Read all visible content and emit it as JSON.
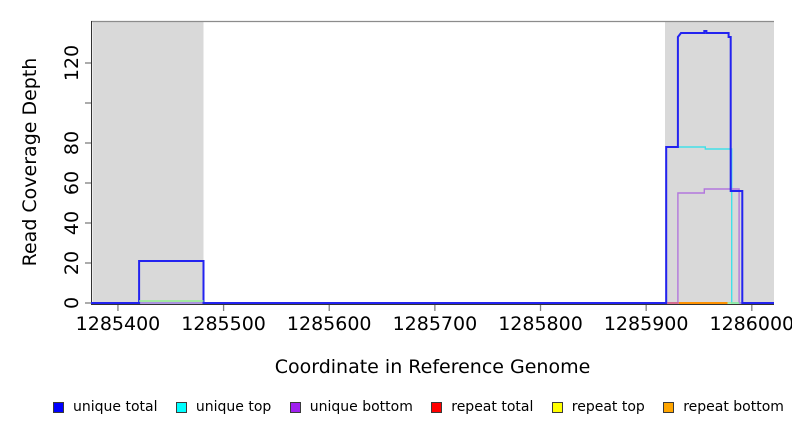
{
  "chart_data": {
    "type": "line",
    "title": "",
    "xlabel": "Coordinate in Reference Genome",
    "ylabel": "Read Coverage Depth",
    "xlim": [
      1285374.5,
      1286021
    ],
    "ylim": [
      0,
      141
    ],
    "x_ticks": [
      1285400,
      1285500,
      1285600,
      1285700,
      1285800,
      1285900,
      1286000
    ],
    "x_tick_labels": [
      "1285400",
      "1285500",
      "1285600",
      "1285700",
      "1285800",
      "1285900",
      "1286000"
    ],
    "y_ticks": [
      0,
      20,
      40,
      60,
      80,
      100,
      120
    ],
    "y_tick_labels": [
      "0",
      "20",
      "40",
      "60",
      "80",
      "",
      "120"
    ],
    "grid": "off",
    "legend_position": "bottom",
    "shaded_regions": [
      {
        "from": 1285376,
        "to": 1285481
      },
      {
        "from": 1285918,
        "to": 1286021
      }
    ],
    "colors": {
      "shading": "#d9d9d9",
      "top_rule": "#8c8c8c",
      "axis": "#333333",
      "tick": "#808080"
    },
    "series": [
      {
        "name": "unique top",
        "slug": "unique-top",
        "color": "#42dfe8",
        "width": 1.4,
        "steps": [
          [
            1285374.5,
            0
          ],
          [
            1285919,
            0
          ],
          [
            1285919,
            78
          ],
          [
            1285956,
            78
          ],
          [
            1285956,
            77
          ],
          [
            1285981,
            77
          ],
          [
            1285981,
            0
          ],
          [
            1286021,
            0
          ]
        ]
      },
      {
        "name": "unique bottom",
        "slug": "unique-bottom",
        "color": "#b277dd",
        "width": 1.4,
        "steps": [
          [
            1285374.5,
            0
          ],
          [
            1285930,
            0
          ],
          [
            1285930,
            55
          ],
          [
            1285955,
            55
          ],
          [
            1285955,
            57
          ],
          [
            1285988,
            57
          ],
          [
            1285988,
            0
          ],
          [
            1286021,
            0
          ]
        ]
      },
      {
        "name": "unique total",
        "slug": "unique-total",
        "color": "#2323f0",
        "width": 2,
        "steps": [
          [
            1285374.5,
            0
          ],
          [
            1285420,
            0
          ],
          [
            1285420,
            21
          ],
          [
            1285481,
            21
          ],
          [
            1285481,
            0
          ],
          [
            1285919,
            0
          ],
          [
            1285919,
            78
          ],
          [
            1285930,
            78
          ],
          [
            1285930,
            133
          ],
          [
            1285933,
            135
          ],
          [
            1285955,
            135
          ],
          [
            1285955,
            136
          ],
          [
            1285957,
            136
          ],
          [
            1285957,
            135
          ],
          [
            1285978,
            135
          ],
          [
            1285978,
            133
          ],
          [
            1285980,
            133
          ],
          [
            1285980,
            56
          ],
          [
            1285991,
            56
          ],
          [
            1285991,
            0
          ],
          [
            1286021,
            0
          ]
        ]
      }
    ],
    "baseline_segments": [
      {
        "name": "left-green-baseline",
        "color": "#90ee90",
        "from": 1285420,
        "to": 1285481,
        "y": 1,
        "width": 1.4
      },
      {
        "name": "repeat-total-baseline",
        "color": "#d85c7c",
        "from": 1285920,
        "to": 1285931,
        "y": 0,
        "width": 1.6
      },
      {
        "name": "repeat-bottom-baseline",
        "color": "#ff9100",
        "from": 1285931,
        "to": 1285977,
        "y": 0,
        "width": 2
      },
      {
        "name": "right-green-baseline",
        "color": "#90ee90",
        "from": 1285977,
        "to": 1285988,
        "y": 0,
        "width": 1.4
      }
    ]
  },
  "legend": {
    "items": [
      {
        "label": "unique total",
        "slug": "unique-total",
        "color": "#0000ff"
      },
      {
        "label": "unique top",
        "slug": "unique-top",
        "color": "#00ffff"
      },
      {
        "label": "unique bottom",
        "slug": "unique-bottom",
        "color": "#a020f0"
      },
      {
        "label": "repeat total",
        "slug": "repeat-total",
        "color": "#ff0000"
      },
      {
        "label": "repeat top",
        "slug": "repeat-top",
        "color": "#ffff00"
      },
      {
        "label": "repeat bottom",
        "slug": "repeat-bottom",
        "color": "#ffa500"
      }
    ]
  }
}
